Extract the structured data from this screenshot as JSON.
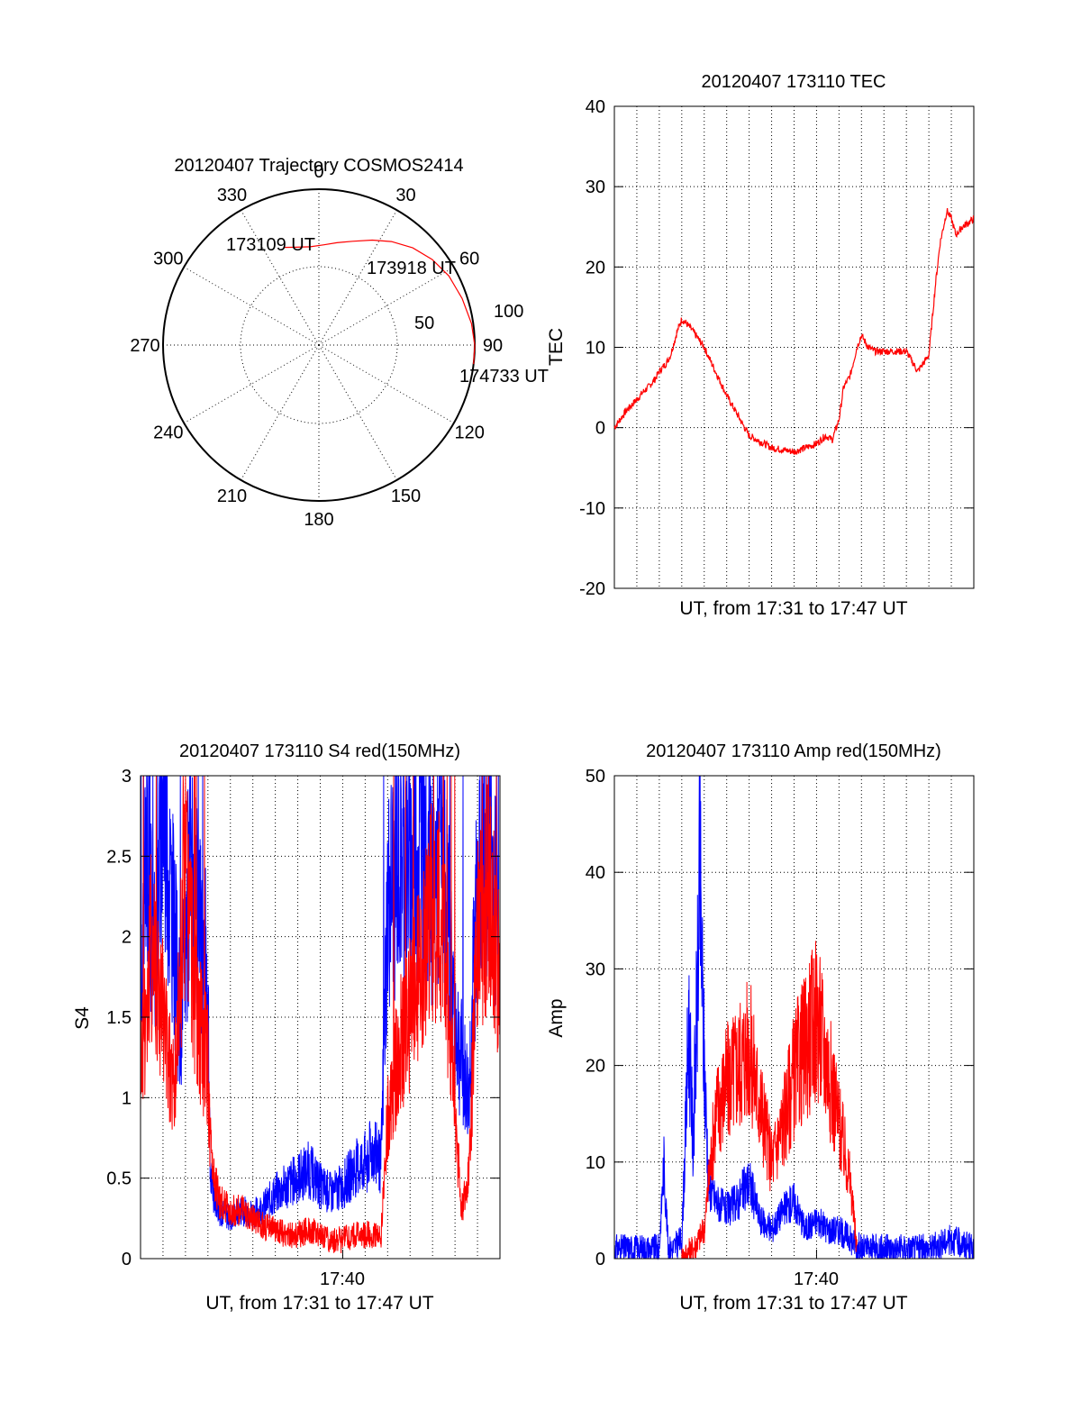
{
  "colors": {
    "red": "#ff0000",
    "blue": "#0000ff",
    "axis": "#000000"
  },
  "chart_data": [
    {
      "id": "trajectory",
      "type": "polar",
      "title": "20120407 Trajectory COSMOS2414",
      "azimuth_labels": [
        "0",
        "30",
        "60",
        "90",
        "120",
        "150",
        "180",
        "210",
        "240",
        "270",
        "300",
        "330"
      ],
      "elevation_labels": [
        "50",
        "100"
      ],
      "series": [
        {
          "color": "red",
          "points": [
            {
              "az": 340,
              "zen": 60
            },
            {
              "az": 347,
              "zen": 58
            },
            {
              "az": 355,
              "zen": 57
            },
            {
              "az": 3,
              "zen": 58
            },
            {
              "az": 10,
              "zen": 60
            },
            {
              "az": 18,
              "zen": 63
            },
            {
              "az": 27,
              "zen": 68
            },
            {
              "az": 35,
              "zen": 73
            },
            {
              "az": 44,
              "zen": 78
            },
            {
              "az": 53,
              "zen": 82
            },
            {
              "az": 62,
              "zen": 85
            },
            {
              "az": 72,
              "zen": 87
            },
            {
              "az": 82,
              "zen": 89
            },
            {
              "az": 90,
              "zen": 90
            },
            {
              "az": 97,
              "zen": 90
            }
          ]
        }
      ],
      "annotations": [
        "173109 UT",
        "173918 UT",
        "174733 UT"
      ]
    },
    {
      "id": "tec",
      "type": "line",
      "title": "20120407 173110 TEC",
      "xlabel": "UT, from 17:31 to 17:47 UT",
      "ylabel": "TEC",
      "xlim": [
        0,
        16
      ],
      "ylim": [
        -20,
        40
      ],
      "yticks": [
        "-20",
        "-10",
        "0",
        "10",
        "20",
        "30",
        "40"
      ],
      "series": [
        {
          "color": "red",
          "x": [
            0,
            0.5,
            1,
            1.3,
            1.5,
            1.8,
            2,
            2.3,
            2.5,
            2.8,
            3,
            3.2,
            3.5,
            4,
            5,
            6,
            7,
            8,
            9,
            9.4,
            9.7,
            10,
            10.2,
            10.5,
            10.8,
            11,
            11.3,
            11.6,
            12,
            12.3,
            12.6,
            13,
            13.5,
            14,
            14.3,
            14.5,
            14.8,
            15,
            15.2,
            15.5,
            16
          ],
          "y": [
            0,
            2,
            3.5,
            4.5,
            5,
            6,
            7,
            8,
            9,
            12,
            13.5,
            13,
            12,
            10,
            4,
            -1,
            -2.5,
            -3,
            -2,
            -1,
            -1.5,
            1,
            5,
            6.5,
            10,
            11.5,
            10,
            9.5,
            9.5,
            9.5,
            9.5,
            9.5,
            7,
            9,
            18,
            23,
            27,
            26,
            24,
            25,
            26
          ]
        }
      ]
    },
    {
      "id": "s4",
      "type": "line",
      "title": "20120407 173110 S4 red(150MHz)",
      "xlabel": "UT, from 17:31 to 17:47 UT",
      "ylabel": "S4",
      "xlim": [
        0,
        16
      ],
      "ylim": [
        0,
        3
      ],
      "yticks": [
        "0",
        "0.5",
        "1",
        "1.5",
        "2",
        "2.5",
        "3"
      ],
      "xtick_label": "17:40",
      "xtick_value": 9,
      "series": [
        {
          "color": "blue",
          "x": [
            0,
            0.3,
            0.6,
            1,
            1.4,
            1.8,
            2.2,
            2.6,
            3,
            3.1,
            3.5,
            4,
            4.5,
            5,
            5.5,
            6,
            6.5,
            7,
            7.5,
            8,
            8.5,
            9,
            9.5,
            10,
            10.5,
            10.7,
            11,
            11.5,
            12,
            12.5,
            13,
            13.5,
            14,
            14.3,
            14.6,
            15,
            15.5,
            16
          ],
          "y": [
            1.5,
            2.6,
            1.8,
            2.9,
            2.2,
            1.4,
            2.5,
            2.0,
            1.8,
            0.5,
            0.3,
            0.25,
            0.3,
            0.28,
            0.32,
            0.4,
            0.45,
            0.5,
            0.55,
            0.45,
            0.4,
            0.45,
            0.55,
            0.6,
            0.7,
            0.55,
            2.2,
            2.5,
            2.4,
            2.6,
            2.3,
            2.5,
            1.5,
            1.2,
            1.0,
            2.3,
            2.6,
            2.0
          ]
        },
        {
          "color": "red",
          "x": [
            0,
            0.5,
            1,
            1.5,
            2,
            2.5,
            3,
            3.1,
            3.5,
            4,
            4.5,
            5,
            5.5,
            6,
            6.5,
            7,
            7.5,
            8,
            8.5,
            9,
            9.5,
            10,
            10.5,
            10.7,
            11,
            11.5,
            12,
            12.5,
            13,
            13.5,
            14,
            14.3,
            14.6,
            15,
            15.5,
            16
          ],
          "y": [
            1.2,
            2.0,
            1.5,
            1.0,
            2.5,
            1.5,
            1.2,
            0.7,
            0.35,
            0.3,
            0.3,
            0.25,
            0.2,
            0.18,
            0.15,
            0.15,
            0.18,
            0.15,
            0.12,
            0.12,
            0.15,
            0.15,
            0.15,
            0.12,
            0.9,
            1.3,
            1.5,
            1.8,
            2.2,
            2.0,
            0.9,
            0.3,
            0.5,
            2.0,
            2.3,
            1.8
          ]
        }
      ]
    },
    {
      "id": "amp",
      "type": "line",
      "title": "20120407 173110 Amp red(150MHz)",
      "xlabel": "UT, from 17:31 to 17:47 UT",
      "ylabel": "Amp",
      "xlim": [
        0,
        16
      ],
      "ylim": [
        0,
        50
      ],
      "yticks": [
        "0",
        "10",
        "20",
        "30",
        "40",
        "50"
      ],
      "xtick_label": "17:40",
      "xtick_value": 9,
      "series": [
        {
          "color": "blue",
          "x": [
            0,
            1,
            2,
            2.2,
            2.4,
            2.6,
            3,
            3.2,
            3.3,
            3.5,
            3.7,
            3.8,
            4,
            4.2,
            4.5,
            5,
            5.5,
            6,
            6.5,
            7,
            7.5,
            8,
            8.5,
            9,
            9.5,
            10,
            10.5,
            11,
            12,
            13,
            14,
            15,
            16
          ],
          "y": [
            1,
            1,
            1,
            10,
            1,
            1,
            2,
            15,
            25,
            12,
            28,
            40,
            20,
            8,
            6,
            5,
            6,
            8,
            4,
            3,
            5,
            6,
            3,
            4,
            3,
            3,
            2,
            1,
            1,
            1,
            1,
            2,
            1
          ]
        },
        {
          "color": "red",
          "x": [
            3,
            3.5,
            4,
            4.2,
            4.5,
            5,
            5.5,
            6,
            6.3,
            6.6,
            7,
            7.5,
            8,
            8.5,
            9,
            9.5,
            10,
            10.5,
            10.8
          ],
          "y": [
            0,
            1,
            3,
            8,
            15,
            18,
            20,
            22,
            18,
            15,
            10,
            14,
            19,
            22,
            25,
            20,
            14,
            8,
            1
          ]
        }
      ]
    }
  ]
}
